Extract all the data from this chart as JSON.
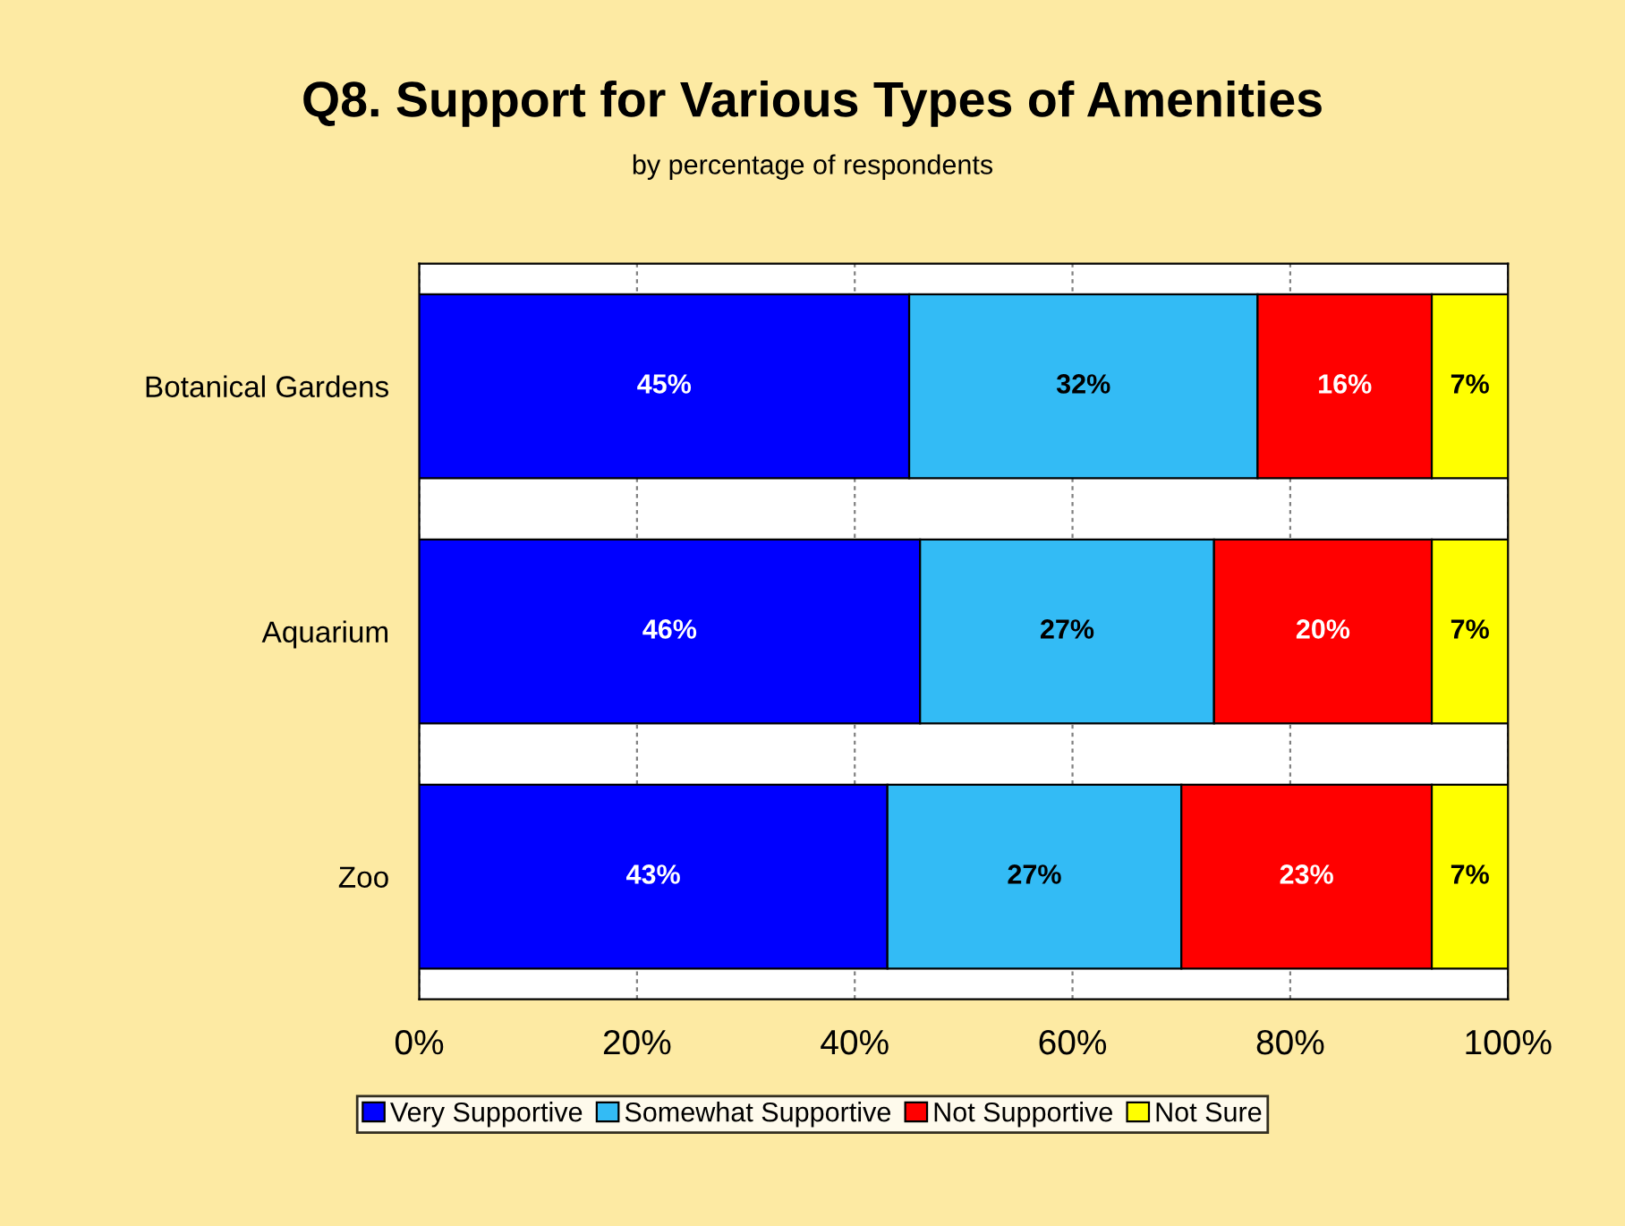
{
  "chart_data": {
    "type": "bar",
    "orientation": "horizontal",
    "stacked": true,
    "title": "Q8. Support for Various Types of Amenities",
    "subtitle": "by percentage of respondents",
    "categories": [
      "Botanical Gardens",
      "Aquarium",
      "Zoo"
    ],
    "series": [
      {
        "name": "Very Supportive",
        "color": "#0000ff",
        "values": [
          45,
          46,
          43
        ],
        "value_labels": [
          "45%",
          "46%",
          "43%"
        ]
      },
      {
        "name": "Somewhat Supportive",
        "color": "#33bbf5",
        "values": [
          32,
          27,
          27
        ],
        "value_labels": [
          "32%",
          "27%",
          "27%"
        ]
      },
      {
        "name": "Not Supportive",
        "color": "#ff0000",
        "values": [
          16,
          20,
          23
        ],
        "value_labels": [
          "16%",
          "20%",
          "23%"
        ]
      },
      {
        "name": "Not Sure",
        "color": "#ffff00",
        "values": [
          7,
          7,
          7
        ],
        "value_labels": [
          "7%",
          "7%",
          "7%"
        ]
      }
    ],
    "xlim": [
      0,
      100
    ],
    "xticks": [
      {
        "value": 0,
        "label": "0%"
      },
      {
        "value": 20,
        "label": "20%"
      },
      {
        "value": 40,
        "label": "40%"
      },
      {
        "value": 60,
        "label": "60%"
      },
      {
        "value": 80,
        "label": "80%"
      },
      {
        "value": 100,
        "label": "100%"
      }
    ],
    "grid": "x",
    "legend": "bottom"
  }
}
